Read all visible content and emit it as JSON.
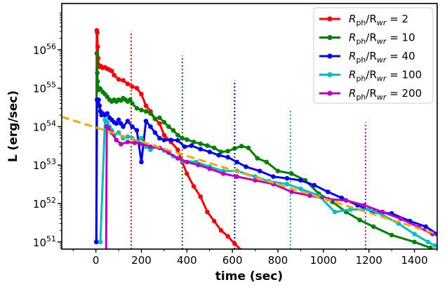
{
  "chart_data": {
    "type": "line",
    "xlabel": "time (sec)",
    "ylabel": "L (erg/sec)",
    "xscale": "linear",
    "yscale": "log",
    "xlim": [
      -150,
      1500
    ],
    "ylim": [
      6.5e+50,
      1.6e+57
    ],
    "xticks": [
      0,
      200,
      400,
      600,
      800,
      1000,
      1200,
      1400
    ],
    "xtick_labels": [
      "0",
      "200",
      "400",
      "600",
      "800",
      "1000",
      "1200",
      "1400"
    ],
    "yticks": [
      {
        "value": 1e+51,
        "base": "10",
        "exp": "51"
      },
      {
        "value": 1e+52,
        "base": "10",
        "exp": "52"
      },
      {
        "value": 1e+53,
        "base": "10",
        "exp": "53"
      },
      {
        "value": 1e+54,
        "base": "10",
        "exp": "54"
      },
      {
        "value": 1e+55,
        "base": "10",
        "exp": "55"
      },
      {
        "value": 1e+56,
        "base": "10",
        "exp": "56"
      }
    ],
    "grid": false,
    "legend_position": "top-right",
    "series": [
      {
        "name": "R_ph/R_wr = 2",
        "legend": {
          "pre": "R",
          "sub1": "ph",
          "mid": "/R",
          "sub2": "wr",
          "post": " = 2"
        },
        "color": "#ff0000",
        "x": [
          2,
          4,
          6,
          8,
          10,
          12,
          15,
          20,
          25,
          30,
          40,
          50,
          60,
          70,
          80,
          100,
          120,
          140,
          160,
          180,
          200,
          220,
          240,
          260,
          280,
          300,
          330,
          360,
          380,
          400,
          430,
          460,
          490,
          520,
          550,
          580,
          610,
          640,
          670
        ],
        "y": [
          1e+51,
          3.2e+56,
          2.8e+56,
          1.2e+56,
          6e+55,
          4e+55,
          3.6e+55,
          3.8e+55,
          3.6e+55,
          3.4e+55,
          3.5e+55,
          3.2e+55,
          3e+55,
          2.8e+55,
          2.2e+55,
          1.7e+55,
          1.6e+55,
          1.3e+55,
          1.1e+55,
          1e+55,
          7e+54,
          3.5e+54,
          2.5e+54,
          1.6e+54,
          1.2e+54,
          6e+53,
          4e+53,
          2.5e+53,
          1.2e+53,
          6e+52,
          2.8e+52,
          1.5e+52,
          6e+51,
          3.5e+51,
          2e+51,
          1.4e+51,
          9e+50,
          6e+50,
          4e+50
        ]
      },
      {
        "name": "R_ph/R_wr = 10",
        "legend": {
          "pre": "R",
          "sub1": "ph",
          "mid": "/R",
          "sub2": "wr",
          "post": " = 10"
        },
        "color": "#008000",
        "x": [
          2,
          4,
          6,
          8,
          10,
          15,
          20,
          30,
          40,
          50,
          60,
          70,
          80,
          90,
          100,
          110,
          120,
          130,
          140,
          150,
          160,
          180,
          200,
          220,
          240,
          260,
          280,
          300,
          320,
          340,
          360,
          380,
          400,
          430,
          460,
          490,
          520,
          550,
          580,
          610,
          640,
          670,
          710,
          750,
          800,
          860,
          920,
          980,
          1040,
          1100,
          1160,
          1220,
          1300,
          1400,
          1470
        ],
        "y": [
          1e+51,
          8e+55,
          2.5e+55,
          1.5e+55,
          9e+54,
          1e+55,
          9.5e+54,
          8e+54,
          7e+54,
          6e+54,
          5e+54,
          4.5e+54,
          5e+54,
          4.5e+54,
          5e+54,
          4.8e+54,
          5.5e+54,
          5e+54,
          4.5e+54,
          5e+54,
          4e+54,
          3e+54,
          2.7e+54,
          2.5e+54,
          2.2e+54,
          1.6e+54,
          1.7e+54,
          1.3e+54,
          1e+54,
          8e+53,
          6e+53,
          5e+53,
          4.6e+53,
          4e+53,
          3.6e+53,
          3.2e+53,
          2.8e+53,
          2.2e+53,
          2.3e+53,
          2.7e+53,
          3.1e+53,
          2.8e+53,
          1.5e+53,
          1.2e+53,
          7e+52,
          6e+52,
          4e+52,
          1.8e+52,
          1.1e+52,
          6e+51,
          3.7e+51,
          2.5e+51,
          1.5e+51,
          1e+51,
          7e+50
        ]
      },
      {
        "name": "R_ph/R_wr = 40",
        "legend": {
          "pre": "R",
          "sub1": "ph",
          "mid": "/R",
          "sub2": "wr",
          "post": " = 40"
        },
        "color": "#0000ff",
        "x": [
          2,
          5,
          8,
          12,
          16,
          20,
          25,
          30,
          40,
          50,
          60,
          70,
          80,
          90,
          100,
          110,
          120,
          140,
          160,
          180,
          200,
          220,
          240,
          260,
          280,
          300,
          330,
          360,
          390,
          420,
          460,
          500,
          540,
          580,
          620,
          660,
          720,
          780,
          840,
          900,
          960,
          1020,
          1080,
          1150,
          1220,
          1300,
          1380,
          1450,
          1500
        ],
        "y": [
          1e+51,
          5e+54,
          4.5e+54,
          5e+54,
          3.5e+54,
          2.5e+54,
          2e+54,
          2.2e+54,
          2e+54,
          2.2e+54,
          1.7e+54,
          1.5e+54,
          1.3e+54,
          1.2e+54,
          1.5e+54,
          1.2e+54,
          1e+54,
          1.4e+54,
          1e+54,
          8e+53,
          1.2e+53,
          1.4e+54,
          1e+54,
          7e+53,
          5e+53,
          4.5e+53,
          4.5e+53,
          4.4e+53,
          3e+53,
          3.2e+53,
          2.6e+53,
          2.2e+53,
          1.8e+53,
          1.6e+53,
          1.2e+53,
          9e+52,
          7e+52,
          5e+52,
          4.5e+52,
          4e+52,
          3e+52,
          2e+52,
          1.4e+52,
          9e+51,
          6e+51,
          5.5e+51,
          3.5e+51,
          2.5e+51,
          1.6e+51
        ]
      },
      {
        "name": "R_ph/R_wr = 100",
        "legend": {
          "pre": "R",
          "sub1": "ph",
          "mid": "/R",
          "sub2": "wr",
          "post": " = 100"
        },
        "color": "#00bfbf",
        "x": [
          20,
          40,
          50,
          60,
          70,
          80,
          100,
          120,
          140,
          160,
          180,
          200,
          220,
          240,
          260,
          300,
          340,
          380,
          440,
          500,
          560,
          620,
          700,
          760,
          840,
          900,
          980,
          1050,
          1120,
          1200,
          1260,
          1330,
          1400,
          1460,
          1490
        ],
        "y": [
          1e+51,
          1.5e+54,
          1.3e+54,
          1e+54,
          8e+53,
          6e+53,
          7e+53,
          5e+53,
          5.5e+53,
          5e+53,
          4e+53,
          5e+53,
          3e+53,
          2.5e+53,
          3e+53,
          2.4e+53,
          1.7e+53,
          1.3e+53,
          1.2e+53,
          9e+52,
          7e+52,
          7e+52,
          5e+52,
          3.8e+52,
          3.2e+52,
          2.4e+52,
          1.6e+52,
          6e+51,
          7e+51,
          7e+51,
          5e+51,
          3e+51,
          1.6e+51,
          1e+51,
          8e+50
        ]
      },
      {
        "name": "R_ph/R_wr = 200",
        "legend": {
          "pre": "R",
          "sub1": "ph",
          "mid": "/R",
          "sub2": "wr",
          "post": " = 200"
        },
        "color": "#bf00bf",
        "x": [
          45,
          48,
          55,
          70,
          90,
          110,
          140,
          170,
          200,
          240,
          280,
          320,
          360,
          400,
          450,
          500,
          560,
          620,
          700,
          780,
          860,
          940,
          1020,
          1100,
          1180,
          1260,
          1340,
          1420,
          1480
        ],
        "y": [
          5e+50,
          1e+54,
          9e+53,
          7e+53,
          4.5e+53,
          3.5e+53,
          4e+53,
          3.8e+53,
          3.6e+53,
          3e+53,
          2.8e+53,
          2.1e+53,
          1.5e+53,
          1.2e+53,
          1e+53,
          8e+52,
          6e+52,
          5e+52,
          4e+52,
          3.2e+52,
          2e+52,
          1.6e+52,
          1.3e+52,
          1.2e+52,
          9e+51,
          6e+51,
          4e+51,
          2.4e+51,
          1.6e+51
        ]
      }
    ],
    "fit_line": {
      "style": "dashed",
      "color": "#ffa500",
      "x": [
        -150,
        1500
      ],
      "y": [
        1.8e+54,
        1.6e+51
      ]
    },
    "vlines": [
      {
        "x": 155,
        "color": "#ff0000",
        "style": "dotted",
        "ymax": 3e+56
      },
      {
        "x": 380,
        "color": "#008000",
        "style": "dotted",
        "ymax": 7e+55
      },
      {
        "x": 610,
        "color": "#0000ff",
        "style": "dotted",
        "ymax": 1.6e+55
      },
      {
        "x": 855,
        "color": "#00bfbf",
        "style": "dotted",
        "ymax": 2.8e+54
      },
      {
        "x": 1185,
        "color": "#bf00bf",
        "style": "dotted",
        "ymax": 1.3e+54
      }
    ]
  }
}
